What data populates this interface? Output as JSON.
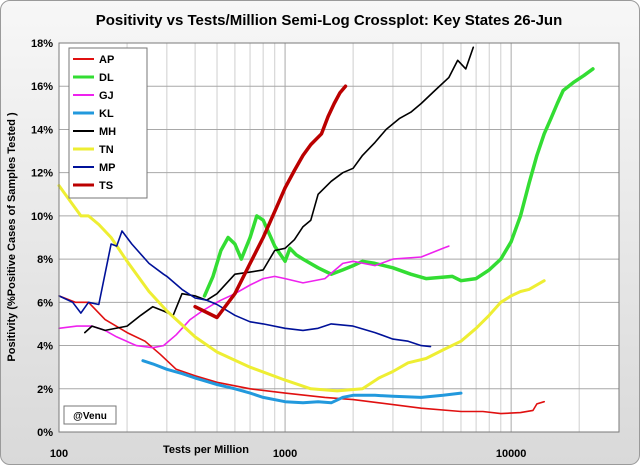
{
  "chart_data": {
    "type": "line",
    "title": "Positivity vs Tests/Million Semi-Log Crossplot: Key States  26-Jun",
    "xlabel": "Tests per Million",
    "ylabel": "Positivity (%Positive Cases of Samples Tested )",
    "x_scale": "log",
    "xlim": [
      100,
      30000
    ],
    "ylim": [
      0,
      18
    ],
    "y_ticks": [
      "0%",
      "2%",
      "4%",
      "6%",
      "8%",
      "10%",
      "12%",
      "14%",
      "16%",
      "18%"
    ],
    "x_ticks": [
      "100",
      "1000",
      "10000"
    ],
    "grid": true,
    "legend_position": "top-left",
    "annotation": "@Venu",
    "colors": {
      "AP": "#e01010",
      "DL": "#33dd33",
      "GJ": "#ee22ee",
      "KL": "#2299dd",
      "MH": "#000000",
      "TN": "#eeee33",
      "MP": "#001199",
      "TS": "#bb0000"
    },
    "series": [
      {
        "name": "AP",
        "points": [
          [
            100,
            6.3
          ],
          [
            118,
            6.0
          ],
          [
            135,
            6.0
          ],
          [
            160,
            5.2
          ],
          [
            200,
            4.6
          ],
          [
            240,
            4.2
          ],
          [
            280,
            3.6
          ],
          [
            330,
            2.9
          ],
          [
            400,
            2.6
          ],
          [
            500,
            2.3
          ],
          [
            700,
            2.0
          ],
          [
            1000,
            1.8
          ],
          [
            1500,
            1.6
          ],
          [
            2000,
            1.5
          ],
          [
            2600,
            1.35
          ],
          [
            4000,
            1.1
          ],
          [
            6000,
            0.95
          ],
          [
            7500,
            0.95
          ],
          [
            9000,
            0.85
          ],
          [
            11000,
            0.9
          ],
          [
            12500,
            1.0
          ],
          [
            13000,
            1.3
          ],
          [
            14000,
            1.4
          ]
        ]
      },
      {
        "name": "DL",
        "points": [
          [
            440,
            6.3
          ],
          [
            480,
            7.2
          ],
          [
            520,
            8.4
          ],
          [
            560,
            9.0
          ],
          [
            600,
            8.7
          ],
          [
            640,
            8.0
          ],
          [
            700,
            9.0
          ],
          [
            750,
            10.0
          ],
          [
            800,
            9.8
          ],
          [
            900,
            8.6
          ],
          [
            1000,
            7.9
          ],
          [
            1050,
            8.5
          ],
          [
            1120,
            8.2
          ],
          [
            1200,
            8.0
          ],
          [
            1400,
            7.6
          ],
          [
            1600,
            7.3
          ],
          [
            1800,
            7.5
          ],
          [
            2000,
            7.7
          ],
          [
            2200,
            7.9
          ],
          [
            2500,
            7.8
          ],
          [
            3000,
            7.6
          ],
          [
            3600,
            7.3
          ],
          [
            4200,
            7.1
          ],
          [
            5500,
            7.2
          ],
          [
            6000,
            7.0
          ],
          [
            7000,
            7.1
          ],
          [
            8000,
            7.5
          ],
          [
            9000,
            8.0
          ],
          [
            10000,
            8.8
          ],
          [
            11000,
            10.0
          ],
          [
            12000,
            11.5
          ],
          [
            13000,
            12.8
          ],
          [
            14000,
            13.8
          ],
          [
            15000,
            14.5
          ],
          [
            16000,
            15.2
          ],
          [
            17000,
            15.8
          ],
          [
            19000,
            16.2
          ],
          [
            21000,
            16.5
          ],
          [
            23000,
            16.8
          ]
        ]
      },
      {
        "name": "GJ",
        "points": [
          [
            100,
            4.8
          ],
          [
            120,
            4.9
          ],
          [
            140,
            4.9
          ],
          [
            160,
            4.7
          ],
          [
            180,
            4.4
          ],
          [
            220,
            4.0
          ],
          [
            260,
            3.9
          ],
          [
            290,
            4.0
          ],
          [
            330,
            4.5
          ],
          [
            380,
            5.2
          ],
          [
            430,
            5.6
          ],
          [
            480,
            5.9
          ],
          [
            520,
            6.1
          ],
          [
            600,
            6.4
          ],
          [
            700,
            6.8
          ],
          [
            800,
            7.1
          ],
          [
            900,
            7.2
          ],
          [
            1000,
            7.1
          ],
          [
            1200,
            6.9
          ],
          [
            1500,
            7.1
          ],
          [
            1800,
            7.8
          ],
          [
            2000,
            7.9
          ],
          [
            2500,
            7.7
          ],
          [
            3000,
            8.0
          ],
          [
            4000,
            8.1
          ],
          [
            5000,
            8.5
          ],
          [
            5300,
            8.6
          ]
        ]
      },
      {
        "name": "KL",
        "points": [
          [
            235,
            3.3
          ],
          [
            260,
            3.15
          ],
          [
            300,
            2.9
          ],
          [
            350,
            2.7
          ],
          [
            400,
            2.5
          ],
          [
            500,
            2.2
          ],
          [
            600,
            2.0
          ],
          [
            700,
            1.8
          ],
          [
            800,
            1.6
          ],
          [
            1000,
            1.4
          ],
          [
            1200,
            1.35
          ],
          [
            1400,
            1.4
          ],
          [
            1600,
            1.35
          ],
          [
            1800,
            1.6
          ],
          [
            2000,
            1.7
          ],
          [
            2500,
            1.7
          ],
          [
            3000,
            1.65
          ],
          [
            4000,
            1.6
          ],
          [
            5000,
            1.7
          ],
          [
            6000,
            1.8
          ]
        ]
      },
      {
        "name": "MH",
        "points": [
          [
            130,
            4.6
          ],
          [
            140,
            4.9
          ],
          [
            160,
            4.7
          ],
          [
            200,
            4.9
          ],
          [
            230,
            5.4
          ],
          [
            260,
            5.8
          ],
          [
            290,
            5.6
          ],
          [
            320,
            5.4
          ],
          [
            350,
            6.4
          ],
          [
            400,
            6.3
          ],
          [
            450,
            6.1
          ],
          [
            500,
            6.4
          ],
          [
            600,
            7.3
          ],
          [
            700,
            7.4
          ],
          [
            800,
            7.5
          ],
          [
            900,
            8.4
          ],
          [
            1000,
            8.5
          ],
          [
            1100,
            8.9
          ],
          [
            1200,
            9.5
          ],
          [
            1300,
            9.8
          ],
          [
            1400,
            11.0
          ],
          [
            1600,
            11.6
          ],
          [
            1800,
            12.0
          ],
          [
            2000,
            12.2
          ],
          [
            2200,
            12.8
          ],
          [
            2500,
            13.4
          ],
          [
            2800,
            14.0
          ],
          [
            3200,
            14.5
          ],
          [
            3600,
            14.8
          ],
          [
            4000,
            15.2
          ],
          [
            4600,
            15.8
          ],
          [
            5300,
            16.4
          ],
          [
            5800,
            17.2
          ],
          [
            6300,
            16.8
          ],
          [
            6800,
            17.8
          ]
        ]
      },
      {
        "name": "TN",
        "points": [
          [
            100,
            11.4
          ],
          [
            110,
            10.8
          ],
          [
            125,
            10.0
          ],
          [
            135,
            10.0
          ],
          [
            150,
            9.6
          ],
          [
            170,
            9.0
          ],
          [
            200,
            7.9
          ],
          [
            250,
            6.5
          ],
          [
            300,
            5.6
          ],
          [
            400,
            4.4
          ],
          [
            500,
            3.7
          ],
          [
            700,
            3.0
          ],
          [
            1000,
            2.4
          ],
          [
            1300,
            2.0
          ],
          [
            1700,
            1.9
          ],
          [
            2200,
            2.0
          ],
          [
            2600,
            2.5
          ],
          [
            3000,
            2.8
          ],
          [
            3500,
            3.2
          ],
          [
            4200,
            3.4
          ],
          [
            5000,
            3.8
          ],
          [
            6000,
            4.2
          ],
          [
            7000,
            4.8
          ],
          [
            8000,
            5.4
          ],
          [
            9000,
            6.0
          ],
          [
            10000,
            6.3
          ],
          [
            11000,
            6.5
          ],
          [
            12000,
            6.6
          ],
          [
            14000,
            7.0
          ]
        ]
      },
      {
        "name": "MP",
        "points": [
          [
            100,
            6.3
          ],
          [
            115,
            6.0
          ],
          [
            125,
            5.5
          ],
          [
            135,
            6.0
          ],
          [
            150,
            5.9
          ],
          [
            170,
            8.7
          ],
          [
            180,
            8.6
          ],
          [
            190,
            9.3
          ],
          [
            210,
            8.7
          ],
          [
            250,
            7.8
          ],
          [
            290,
            7.3
          ],
          [
            300,
            7.2
          ],
          [
            350,
            6.6
          ],
          [
            400,
            6.2
          ],
          [
            450,
            6.1
          ],
          [
            500,
            5.9
          ],
          [
            600,
            5.4
          ],
          [
            700,
            5.1
          ],
          [
            800,
            5.0
          ],
          [
            1000,
            4.8
          ],
          [
            1200,
            4.7
          ],
          [
            1400,
            4.8
          ],
          [
            1600,
            5.0
          ],
          [
            2000,
            4.9
          ],
          [
            2500,
            4.6
          ],
          [
            3000,
            4.3
          ],
          [
            3500,
            4.2
          ],
          [
            4000,
            4.0
          ],
          [
            4400,
            3.95
          ]
        ]
      },
      {
        "name": "TS",
        "points": [
          [
            400,
            5.8
          ],
          [
            500,
            5.3
          ],
          [
            600,
            6.4
          ],
          [
            700,
            7.8
          ],
          [
            800,
            9.0
          ],
          [
            900,
            10.2
          ],
          [
            1000,
            11.3
          ],
          [
            1100,
            12.1
          ],
          [
            1200,
            12.8
          ],
          [
            1300,
            13.3
          ],
          [
            1450,
            13.8
          ],
          [
            1550,
            14.6
          ],
          [
            1650,
            15.2
          ],
          [
            1750,
            15.7
          ],
          [
            1850,
            16.0
          ]
        ]
      }
    ]
  }
}
